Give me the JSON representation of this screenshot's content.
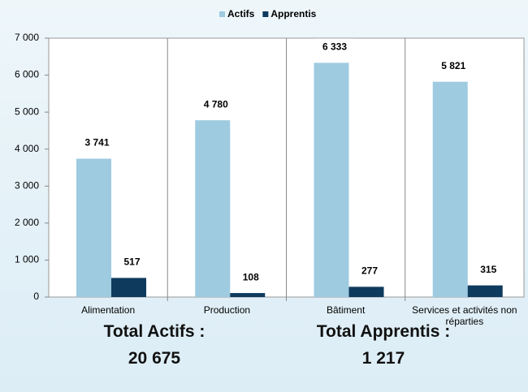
{
  "chart_data": {
    "type": "bar",
    "categories": [
      "Alimentation",
      "Production",
      "Bâtiment",
      "Services et activités non réparties"
    ],
    "series": [
      {
        "name": "Actifs",
        "color": "#9ecbe0",
        "values": [
          3741,
          4780,
          6333,
          5821
        ],
        "value_labels": [
          "3 741",
          "4 780",
          "6 333",
          "5 821"
        ]
      },
      {
        "name": "Apprentis",
        "color": "#0e3a5e",
        "values": [
          517,
          108,
          277,
          315
        ],
        "value_labels": [
          "517",
          "108",
          "277",
          "315"
        ]
      }
    ],
    "ylim": [
      0,
      7000
    ],
    "yticks": [
      0,
      {
        "value": 1000,
        "label": "1 000"
      },
      {
        "value": 2000,
        "label": "2 000"
      },
      {
        "value": 3000,
        "label": "3 000"
      },
      {
        "value": 4000,
        "label": "4 000"
      },
      {
        "value": 5000,
        "label": "5 000"
      },
      {
        "value": 6000,
        "label": "6 000"
      },
      {
        "value": 7000,
        "label": "7 000"
      }
    ],
    "grid": false,
    "legend": "top",
    "totals": [
      {
        "label": "Total Actifs :",
        "value": 20675,
        "value_label": "20 675"
      },
      {
        "label": "Total Apprentis :",
        "value": 1217,
        "value_label": "1 217"
      }
    ]
  }
}
